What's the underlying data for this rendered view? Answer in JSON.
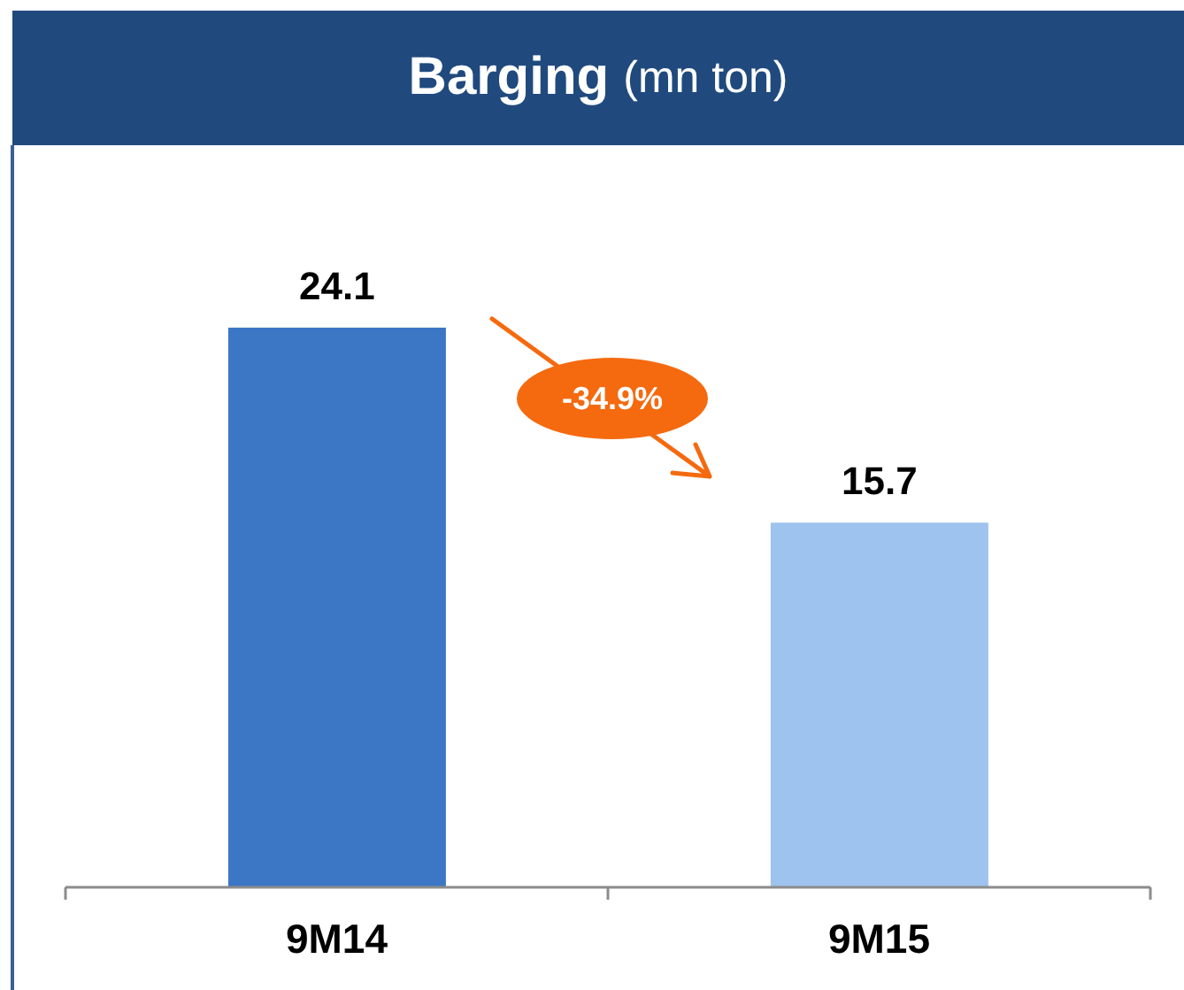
{
  "chart_data": {
    "type": "bar",
    "title": "Barging",
    "subtitle": "(mn ton)",
    "categories": [
      "9M14",
      "9M15"
    ],
    "values": [
      24.1,
      15.7
    ],
    "colors": [
      "#3c77c5",
      "#9dc3ee"
    ],
    "data_labels": true,
    "annotations": [
      "-34.9%"
    ]
  }
}
